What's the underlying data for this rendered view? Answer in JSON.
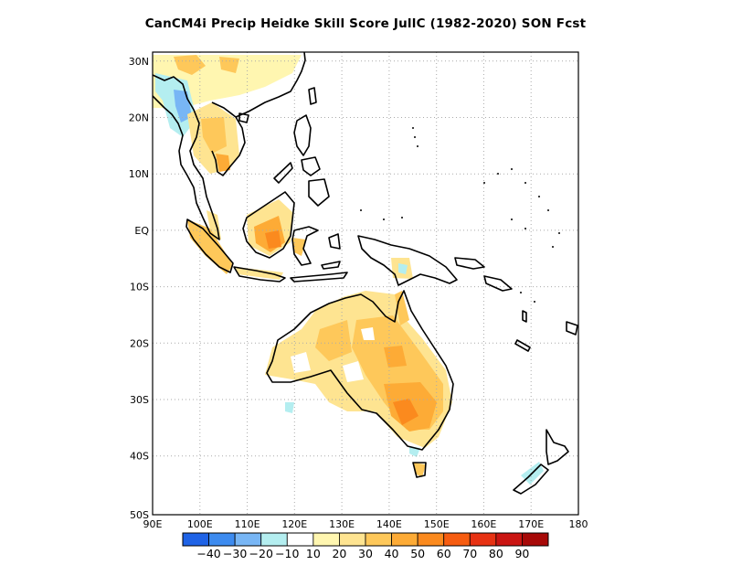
{
  "title": "CanCM4i Precip Heidke Skill Score JullC (1982-2020) SON Fcst",
  "map": {
    "lon_labels": [
      "90E",
      "100E",
      "110E",
      "120E",
      "130E",
      "140E",
      "150E",
      "160E",
      "170E",
      "180"
    ],
    "lat_labels": [
      "30N",
      "20N",
      "10N",
      "EQ",
      "10S",
      "20S",
      "30S",
      "40S",
      "50S"
    ],
    "colors": {
      "coast": "#000000",
      "grid": "#aaaaaa"
    }
  },
  "colorbar": {
    "colors": [
      "#1f63e6",
      "#3d8bef",
      "#78b6f5",
      "#b4eef0",
      "#ffffff",
      "#fff6b0",
      "#fee491",
      "#fec85a",
      "#fdab36",
      "#fb8a1e",
      "#f65c10",
      "#e73213",
      "#ca1512",
      "#a70908"
    ],
    "labels": [
      "-40",
      "-30",
      "-20",
      "-10",
      "10",
      "20",
      "30",
      "40",
      "50",
      "60",
      "70",
      "80",
      "90"
    ]
  },
  "chart_data": {
    "type": "heatmap",
    "title": "CanCM4i Precip Heidke Skill Score JullC (1982-2020) SON Fcst",
    "x_ticks": [
      "90E",
      "100E",
      "110E",
      "120E",
      "130E",
      "140E",
      "150E",
      "160E",
      "170E",
      "180"
    ],
    "y_ticks": [
      "30N",
      "20N",
      "10N",
      "EQ",
      "10S",
      "20S",
      "30S",
      "40S",
      "50S"
    ],
    "xlim": [
      90,
      180
    ],
    "ylim": [
      -50,
      32
    ],
    "colorbar_levels": [
      -40,
      -30,
      -20,
      -10,
      10,
      20,
      30,
      40,
      50,
      60,
      70,
      80,
      90
    ]
  }
}
